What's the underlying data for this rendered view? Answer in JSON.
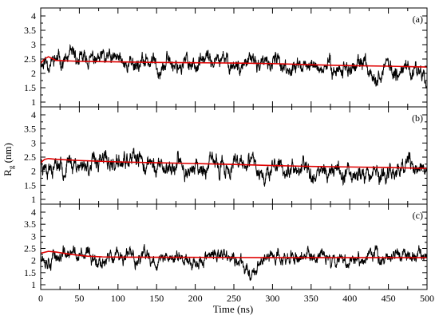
{
  "chart_data": {
    "type": "line",
    "xlabel": "Time (ns)",
    "ylabel": "Rg (nm)",
    "ylabel_main": "R",
    "ylabel_sub": "g",
    "ylabel_unit": " (nm)",
    "xlim": [
      0,
      500
    ],
    "ylim": [
      1,
      4
    ],
    "x_ticks": [
      0,
      50,
      100,
      150,
      200,
      250,
      300,
      350,
      400,
      450,
      500
    ],
    "y_ticks": [
      1,
      1.5,
      2,
      2.5,
      3,
      3.5,
      4
    ],
    "series_colors": {
      "raw": "#000000",
      "average": "#e00000"
    },
    "panels": [
      {
        "label": "(a)",
        "raw": {
          "base": 2.35,
          "amplitude": 0.42,
          "seed": 11,
          "trend": [
            [
              0,
              2.45
            ],
            [
              100,
              2.4
            ],
            [
              250,
              2.35
            ],
            [
              300,
              2.3
            ],
            [
              500,
              2.1
            ]
          ]
        },
        "average": {
          "x": [
            0,
            5,
            10,
            20,
            50,
            100,
            150,
            200,
            250,
            300,
            350,
            400,
            450,
            500
          ],
          "y": [
            2.35,
            2.5,
            2.58,
            2.45,
            2.42,
            2.4,
            2.38,
            2.37,
            2.36,
            2.34,
            2.3,
            2.27,
            2.25,
            2.22
          ]
        }
      },
      {
        "label": "(b)",
        "raw": {
          "base": 2.25,
          "amplitude": 0.48,
          "seed": 23,
          "trend": [
            [
              0,
              2.35
            ],
            [
              100,
              2.25
            ],
            [
              250,
              2.1
            ],
            [
              350,
              2.1
            ],
            [
              450,
              1.95
            ],
            [
              500,
              2.05
            ]
          ]
        },
        "average": {
          "x": [
            0,
            5,
            10,
            20,
            50,
            100,
            150,
            200,
            250,
            300,
            350,
            400,
            450,
            500
          ],
          "y": [
            2.3,
            2.42,
            2.45,
            2.42,
            2.38,
            2.33,
            2.3,
            2.27,
            2.24,
            2.2,
            2.17,
            2.15,
            2.13,
            2.1
          ]
        }
      },
      {
        "label": "(c)",
        "raw": {
          "base": 2.1,
          "amplitude": 0.45,
          "seed": 37,
          "trend": [
            [
              0,
              2.3
            ],
            [
              30,
              2.2
            ],
            [
              100,
              2.1
            ],
            [
              250,
              2.05
            ],
            [
              270,
              1.55
            ],
            [
              290,
              2.1
            ],
            [
              500,
              2.2
            ]
          ]
        },
        "average": {
          "x": [
            0,
            10,
            20,
            40,
            60,
            80,
            100,
            200,
            300,
            400,
            500
          ],
          "y": [
            2.3,
            2.38,
            2.35,
            2.25,
            2.18,
            2.15,
            2.14,
            2.13,
            2.12,
            2.12,
            2.12
          ]
        }
      }
    ]
  }
}
